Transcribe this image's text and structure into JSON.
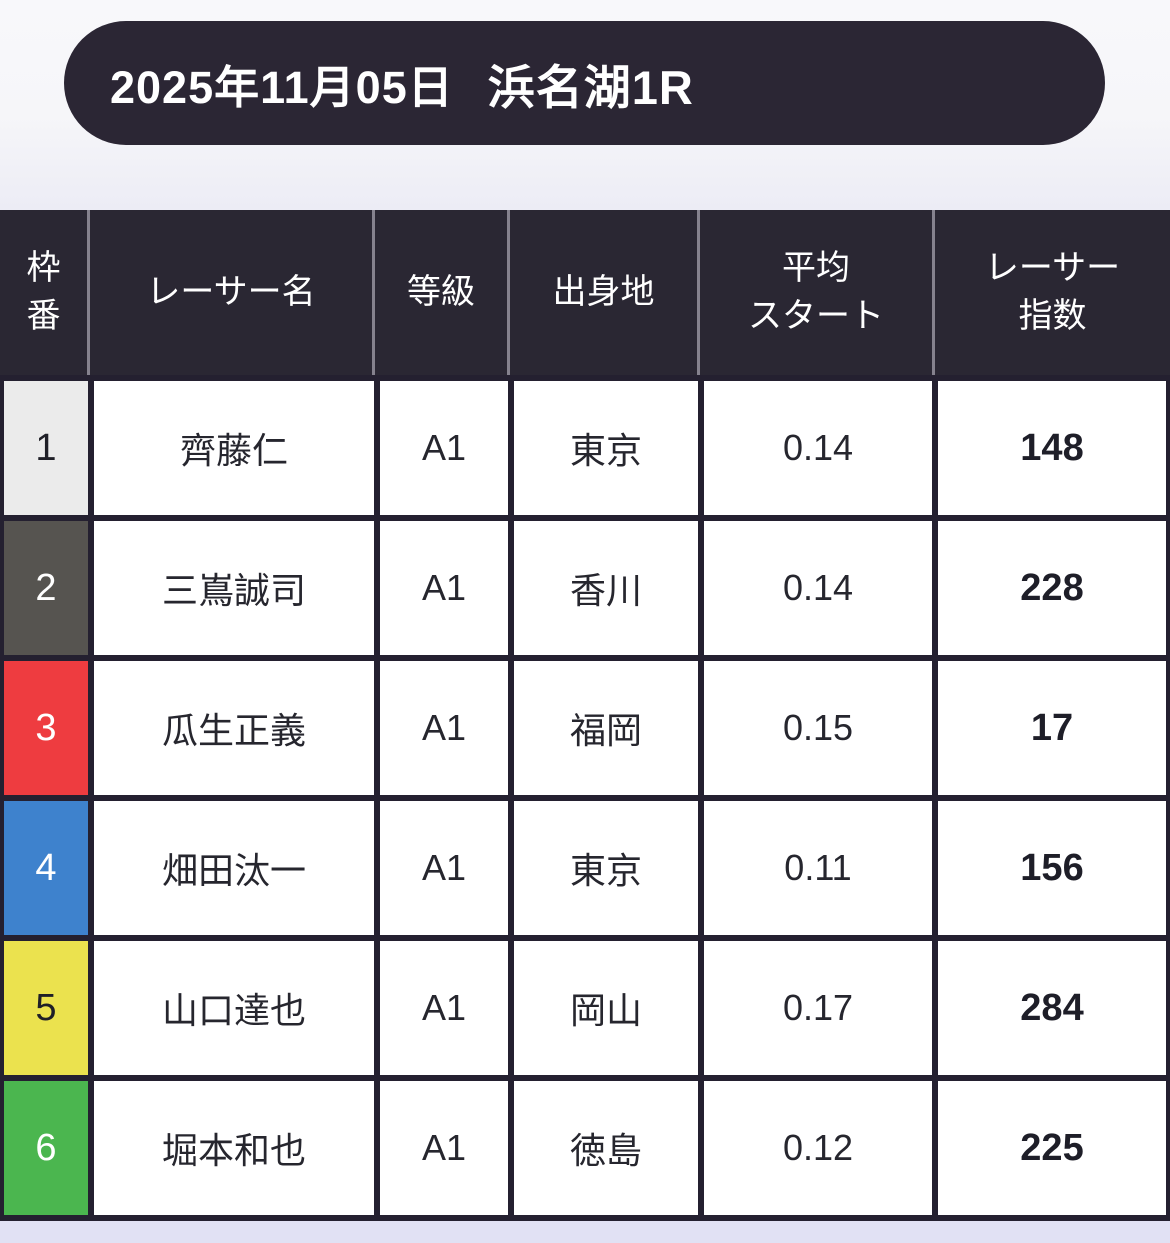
{
  "header": {
    "date": "2025年11月05日",
    "race": "浜名湖1R"
  },
  "colors": {
    "pill_bg": "#2b2634",
    "table_header_bg": "#2a2733",
    "header_divider": "#85828e",
    "grid_border": "#242030",
    "body_cell_bg": "#ffffff",
    "page_bg_top": "#f7f7fa",
    "bottom_strip": "#e1e1f4"
  },
  "table": {
    "columns": [
      {
        "id": "waku",
        "label": "枠\n番"
      },
      {
        "id": "racer_name",
        "label": "レーサー名"
      },
      {
        "id": "grade",
        "label": "等級"
      },
      {
        "id": "origin",
        "label": "出身地"
      },
      {
        "id": "avg_start",
        "label": "平均\nスタート"
      },
      {
        "id": "racer_index",
        "label": "レーサー\n指数"
      }
    ],
    "rows": [
      {
        "frame": "1",
        "frame_bg": "#ebebeb",
        "frame_fg": "#1f1f27",
        "name": "齊藤仁",
        "grade": "A1",
        "origin": "東京",
        "avg_start": "0.14",
        "index": "148"
      },
      {
        "frame": "2",
        "frame_bg": "#565450",
        "frame_fg": "#ffffff",
        "name": "三嶌誠司",
        "grade": "A1",
        "origin": "香川",
        "avg_start": "0.14",
        "index": "228"
      },
      {
        "frame": "3",
        "frame_bg": "#ee3c40",
        "frame_fg": "#ffffff",
        "name": "瓜生正義",
        "grade": "A1",
        "origin": "福岡",
        "avg_start": "0.15",
        "index": "17"
      },
      {
        "frame": "4",
        "frame_bg": "#3e82cd",
        "frame_fg": "#ffffff",
        "name": "畑田汰一",
        "grade": "A1",
        "origin": "東京",
        "avg_start": "0.11",
        "index": "156"
      },
      {
        "frame": "5",
        "frame_bg": "#ebe24e",
        "frame_fg": "#1f1f27",
        "name": "山口達也",
        "grade": "A1",
        "origin": "岡山",
        "avg_start": "0.17",
        "index": "284"
      },
      {
        "frame": "6",
        "frame_bg": "#4bb64f",
        "frame_fg": "#ffffff",
        "name": "堀本和也",
        "grade": "A1",
        "origin": "徳島",
        "avg_start": "0.12",
        "index": "225"
      }
    ]
  }
}
